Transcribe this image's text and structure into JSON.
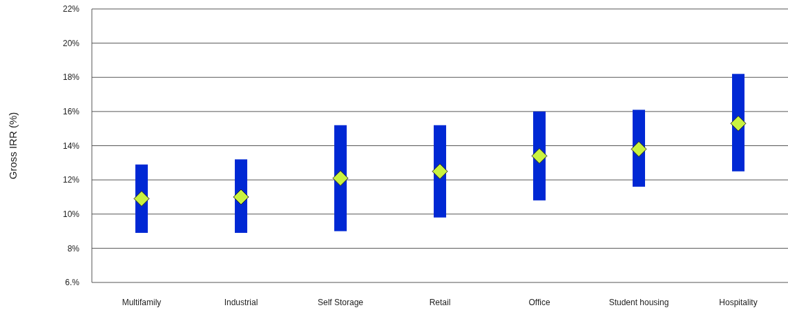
{
  "chart_data": {
    "type": "bar",
    "ylabel": "Gross IRR (%)",
    "categories": [
      "Multifamily",
      "Industrial",
      "Self Storage",
      "Retail",
      "Office",
      "Student housing",
      "Hospitality"
    ],
    "series": [
      {
        "color": "#0028d4",
        "base": [
          8.9,
          8.9,
          9.0,
          9.8,
          10.8,
          11.6,
          12.5
        ],
        "values": [
          4.0,
          4.3,
          6.2,
          5.4,
          5.2,
          4.5,
          5.7
        ]
      },
      {
        "type": "scatter",
        "color": "#c9f240",
        "marker": "diamond",
        "x": [
          "Multifamily",
          "Industrial",
          "Self Storage",
          "Retail",
          "Office",
          "Student housing",
          "Hospitality"
        ],
        "values": [
          10.9,
          11.0,
          12.1,
          12.5,
          13.4,
          13.8,
          15.3
        ]
      }
    ],
    "ylim": [
      6,
      22
    ],
    "yticks": [
      {
        "value": 6,
        "label": "6.%"
      },
      {
        "value": 8,
        "label": "8%"
      },
      {
        "value": 10,
        "label": "10%"
      },
      {
        "value": 12,
        "label": "12%"
      },
      {
        "value": 14,
        "label": "14%"
      },
      {
        "value": 16,
        "label": "16%"
      },
      {
        "value": 18,
        "label": "18%"
      },
      {
        "value": 20,
        "label": "20%"
      },
      {
        "value": 22,
        "label": "22%"
      }
    ],
    "grid": "y"
  }
}
